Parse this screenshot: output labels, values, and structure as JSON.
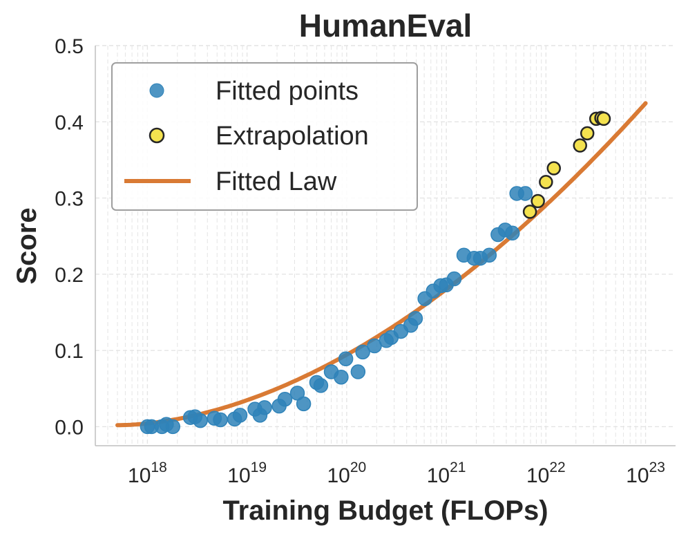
{
  "chart_data": {
    "type": "scatter",
    "title": "HumanEval",
    "xlabel": "Training Budget (FLOPs)",
    "ylabel": "Score",
    "xscale": "log",
    "xlim": [
      3e+17,
      2e+23
    ],
    "ylim": [
      -0.025,
      0.5
    ],
    "grid": true,
    "legend_position": "top-left",
    "yticks": [
      "0.0",
      "0.1",
      "0.2",
      "0.3",
      "0.4",
      "0.5"
    ],
    "xticks": [
      {
        "base": "10",
        "exp": "18"
      },
      {
        "base": "10",
        "exp": "19"
      },
      {
        "base": "10",
        "exp": "20"
      },
      {
        "base": "10",
        "exp": "21"
      },
      {
        "base": "10",
        "exp": "22"
      },
      {
        "base": "10",
        "exp": "23"
      }
    ],
    "colors": {
      "fitted": "#2f83b9",
      "extrapolation": "#f4e24f",
      "law": "#d97a34",
      "edge": "#262626"
    },
    "series": [
      {
        "name": "Fitted points",
        "kind": "scatter",
        "points": [
          [
            1e+18,
            0.0
          ],
          [
            1.1e+18,
            0.0
          ],
          [
            1.4e+18,
            0.0
          ],
          [
            1.55e+18,
            0.003
          ],
          [
            1.8e+18,
            0.0
          ],
          [
            2.7e+18,
            0.012
          ],
          [
            3e+18,
            0.013
          ],
          [
            3.4e+18,
            0.008
          ],
          [
            4.7e+18,
            0.011
          ],
          [
            5.4e+18,
            0.009
          ],
          [
            7.5e+18,
            0.01
          ],
          [
            8.5e+18,
            0.015
          ],
          [
            1.2e+19,
            0.023
          ],
          [
            1.35e+19,
            0.015
          ],
          [
            1.5e+19,
            0.025
          ],
          [
            2.1e+19,
            0.027
          ],
          [
            2.4e+19,
            0.036
          ],
          [
            3.2e+19,
            0.044
          ],
          [
            3.7e+19,
            0.03
          ],
          [
            5e+19,
            0.058
          ],
          [
            5.5e+19,
            0.054
          ],
          [
            7e+19,
            0.072
          ],
          [
            8.8e+19,
            0.065
          ],
          [
            9.8e+19,
            0.089
          ],
          [
            1.3e+20,
            0.072
          ],
          [
            1.45e+20,
            0.098
          ],
          [
            1.9e+20,
            0.106
          ],
          [
            2.5e+20,
            0.113
          ],
          [
            2.8e+20,
            0.117
          ],
          [
            3.5e+20,
            0.125
          ],
          [
            4.4e+20,
            0.133
          ],
          [
            4.9e+20,
            0.142
          ],
          [
            6.1e+20,
            0.168
          ],
          [
            7.4e+20,
            0.178
          ],
          [
            8.8e+20,
            0.185
          ],
          [
            1e+21,
            0.186
          ],
          [
            1.2e+21,
            0.194
          ],
          [
            1.5e+21,
            0.225
          ],
          [
            1.9e+21,
            0.221
          ],
          [
            2.2e+21,
            0.221
          ],
          [
            2.7e+21,
            0.225
          ],
          [
            3.3e+21,
            0.252
          ],
          [
            3.9e+21,
            0.258
          ],
          [
            4.6e+21,
            0.254
          ],
          [
            5.1e+21,
            0.306
          ],
          [
            6.2e+21,
            0.306
          ]
        ]
      },
      {
        "name": "Extrapolation",
        "kind": "scatter",
        "points": [
          [
            6.9e+21,
            0.282
          ],
          [
            8.3e+21,
            0.296
          ],
          [
            1e+22,
            0.321
          ],
          [
            1.2e+22,
            0.339
          ],
          [
            2.2e+22,
            0.369
          ],
          [
            2.6e+22,
            0.385
          ],
          [
            3.2e+22,
            0.404
          ],
          [
            3.6e+22,
            0.405
          ],
          [
            3.8e+22,
            0.404
          ]
        ]
      },
      {
        "name": "Fitted Law",
        "kind": "line",
        "formula": "0.002 + 0.0203 * (log10(x) - 17.7)^1.82",
        "x_range": [
          5e+17,
          1e+23
        ]
      }
    ]
  }
}
